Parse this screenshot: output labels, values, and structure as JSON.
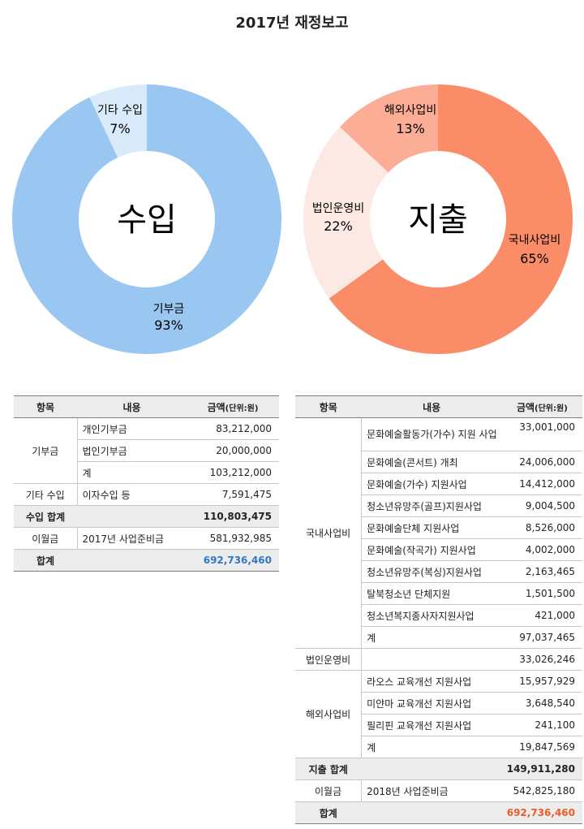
{
  "title": "2017년 재정보고",
  "charts": {
    "income": {
      "center_label": "수입",
      "slices": [
        {
          "label": "기부금",
          "pct": "93%",
          "value": 93,
          "color": "#99c7f1"
        },
        {
          "label": "기타 수입",
          "pct": "7%",
          "value": 7,
          "color": "#d9ebfb"
        }
      ]
    },
    "expense": {
      "center_label": "지출",
      "slices": [
        {
          "label": "국내사업비",
          "pct": "65%",
          "value": 65,
          "color": "#fa8d68"
        },
        {
          "label": "법인운영비",
          "pct": "22%",
          "value": 22,
          "color": "#fde9e3"
        },
        {
          "label": "해외사업비",
          "pct": "13%",
          "value": 13,
          "color": "#fbae95"
        }
      ]
    }
  },
  "income_table": {
    "headers": {
      "item": "항목",
      "content": "내용",
      "amount": "금액",
      "unit": "(단위:원)"
    },
    "donation": {
      "category": "기부금",
      "rows": [
        {
          "content": "개인기부금",
          "amount": "83,212,000"
        },
        {
          "content": "법인기부금",
          "amount": "20,000,000"
        },
        {
          "content": "계",
          "amount": "103,212,000"
        }
      ]
    },
    "other": {
      "category": "기타 수입",
      "content": "이자수입 등",
      "amount": "7,591,475"
    },
    "income_total": {
      "label": "수입 합계",
      "amount": "110,803,475"
    },
    "carryover": {
      "category": "이월금",
      "content": "2017년 사업준비금",
      "amount": "581,932,985"
    },
    "grand_total": {
      "label": "합계",
      "amount": "692,736,460"
    }
  },
  "expense_table": {
    "headers": {
      "item": "항목",
      "content": "내용",
      "amount": "금액",
      "unit": "(단위:원)"
    },
    "domestic": {
      "category": "국내사업비",
      "rows": [
        {
          "content": "문화예술활동가(가수) 지원 사업",
          "amount": "33,001,000"
        },
        {
          "content": "문화예술(콘서트) 개최",
          "amount": "24,006,000"
        },
        {
          "content": "문화예술(가수) 지원사업",
          "amount": "14,412,000"
        },
        {
          "content": "청소년유망주(골프)지원사업",
          "amount": "9,004,500"
        },
        {
          "content": "문화예술단체 지원사업",
          "amount": "8,526,000"
        },
        {
          "content": "문화예술(작곡가) 지원사업",
          "amount": "4,002,000"
        },
        {
          "content": "청소년유망주(복싱)지원사업",
          "amount": "2,163,465"
        },
        {
          "content": "탈북청소년 단체지원",
          "amount": "1,501,500"
        },
        {
          "content": "청소년복지종사자지원사업",
          "amount": "421,000"
        },
        {
          "content": "계",
          "amount": "97,037,465"
        }
      ]
    },
    "operation": {
      "category": "법인운영비",
      "amount": "33,026,246"
    },
    "overseas": {
      "category": "해외사업비",
      "rows": [
        {
          "content": "라오스 교육개선 지원사업",
          "amount": "15,957,929"
        },
        {
          "content": "미얀마 교육개선 지원사업",
          "amount": "3,648,540"
        },
        {
          "content": "필리핀 교육개선 지원사업",
          "amount": "241,100"
        },
        {
          "content": "계",
          "amount": "19,847,569"
        }
      ]
    },
    "expense_total": {
      "label": "지출 합계",
      "amount": "149,911,280"
    },
    "carryover": {
      "category": "이월금",
      "content": "2018년 사업준비금",
      "amount": "542,825,180"
    },
    "grand_total": {
      "label": "합계",
      "amount": "692,736,460"
    }
  }
}
